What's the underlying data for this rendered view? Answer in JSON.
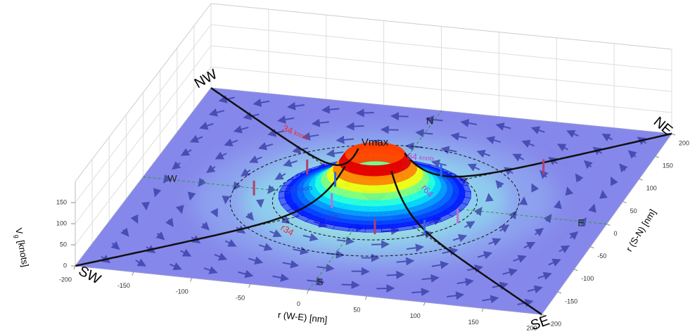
{
  "chart_data": {
    "type": "surface3d",
    "xlabel": "r (W-E) [nm]",
    "ylabel": "r (S-N) [nm]",
    "zlabel": {
      "symbol": "V",
      "subscript": "g",
      "unit": "[knots]"
    },
    "xlim": [
      -200,
      200
    ],
    "ylim": [
      -200,
      200
    ],
    "zlim": [
      0,
      200
    ],
    "xticks": [
      -200,
      -150,
      -100,
      -50,
      0,
      50,
      100,
      150,
      200
    ],
    "yticks": [
      -200,
      -150,
      -100,
      -50,
      0,
      50,
      100,
      150,
      200
    ],
    "zticks": [
      0,
      50,
      100,
      150
    ],
    "grid": true,
    "corner_labels": [
      "SW",
      "SE",
      "NE",
      "NW"
    ],
    "compass_labels": [
      "S",
      "E",
      "N",
      "W"
    ],
    "peak_label": "Vmax",
    "wind_speed_labels": [
      {
        "speed": "34",
        "unit": "knots",
        "color": "#e8302a"
      },
      {
        "speed": "50",
        "unit": "knots",
        "color": "#2a3fe0"
      },
      {
        "speed": "64",
        "unit": "knots",
        "color": "#c040d0"
      }
    ],
    "radius_labels": [
      {
        "text": "r34",
        "color": "#e8302a"
      },
      {
        "text": "r50",
        "color": "#2a3fe0"
      },
      {
        "text": "r64",
        "color": "#c040d0"
      }
    ]
  }
}
